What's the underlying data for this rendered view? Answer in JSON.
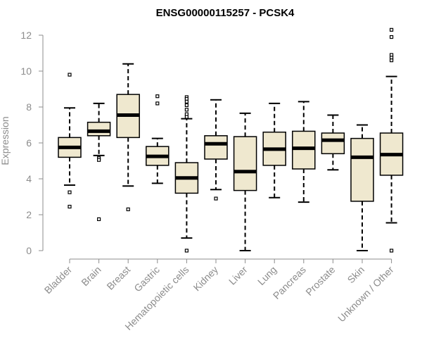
{
  "chart_data": {
    "type": "boxplot",
    "title": "ENSG00000115257 - PCSK4",
    "ylabel": "Expression",
    "ylim": [
      0,
      12
    ],
    "yticks": [
      0,
      2,
      4,
      6,
      8,
      10,
      12
    ],
    "box_fill": "#efe8cf",
    "categories": [
      "Bladder",
      "Brain",
      "Breast",
      "Gastric",
      "Hematopoietic cells",
      "Kidney",
      "Liver",
      "Lung",
      "Pancreas",
      "Prostate",
      "Skin",
      "Unknown / Other"
    ],
    "boxes": [
      {
        "name": "Bladder",
        "whisker_low": 3.65,
        "q1": 5.2,
        "median": 5.75,
        "q3": 6.3,
        "whisker_high": 7.95,
        "outliers": [
          9.8,
          3.25,
          2.45
        ]
      },
      {
        "name": "Brain",
        "whisker_low": 5.3,
        "q1": 6.4,
        "median": 6.65,
        "q3": 7.15,
        "whisker_high": 8.2,
        "outliers": [
          5.15,
          5.05,
          1.75
        ]
      },
      {
        "name": "Breast",
        "whisker_low": 3.6,
        "q1": 6.3,
        "median": 7.55,
        "q3": 8.7,
        "whisker_high": 10.4,
        "outliers": [
          2.3
        ]
      },
      {
        "name": "Gastric",
        "whisker_low": 3.75,
        "q1": 4.75,
        "median": 5.25,
        "q3": 5.8,
        "whisker_high": 6.25,
        "outliers": [
          8.6,
          8.2
        ]
      },
      {
        "name": "Hematopoietic cells",
        "whisker_low": 0.7,
        "q1": 3.2,
        "median": 4.05,
        "q3": 4.9,
        "whisker_high": 7.35,
        "outliers": [
          8.55,
          8.45,
          8.3,
          8.1,
          7.85,
          7.6,
          7.45,
          0.0
        ]
      },
      {
        "name": "Kidney",
        "whisker_low": 3.4,
        "q1": 5.1,
        "median": 5.95,
        "q3": 6.4,
        "whisker_high": 8.4,
        "outliers": [
          2.9
        ]
      },
      {
        "name": "Liver",
        "whisker_low": 0.0,
        "q1": 3.35,
        "median": 4.4,
        "q3": 6.35,
        "whisker_high": 7.65,
        "outliers": []
      },
      {
        "name": "Lung",
        "whisker_low": 2.95,
        "q1": 4.75,
        "median": 5.65,
        "q3": 6.6,
        "whisker_high": 8.2,
        "outliers": []
      },
      {
        "name": "Pancreas",
        "whisker_low": 2.7,
        "q1": 4.55,
        "median": 5.7,
        "q3": 6.65,
        "whisker_high": 8.3,
        "outliers": []
      },
      {
        "name": "Prostate",
        "whisker_low": 4.5,
        "q1": 5.4,
        "median": 6.15,
        "q3": 6.55,
        "whisker_high": 7.55,
        "outliers": []
      },
      {
        "name": "Skin",
        "whisker_low": 0.0,
        "q1": 2.75,
        "median": 5.2,
        "q3": 6.25,
        "whisker_high": 7.0,
        "outliers": []
      },
      {
        "name": "Unknown / Other",
        "whisker_low": 1.55,
        "q1": 4.2,
        "median": 5.35,
        "q3": 6.55,
        "whisker_high": 9.7,
        "outliers": [
          12.3,
          11.9,
          10.9,
          10.75,
          10.6,
          0.0
        ]
      }
    ]
  }
}
